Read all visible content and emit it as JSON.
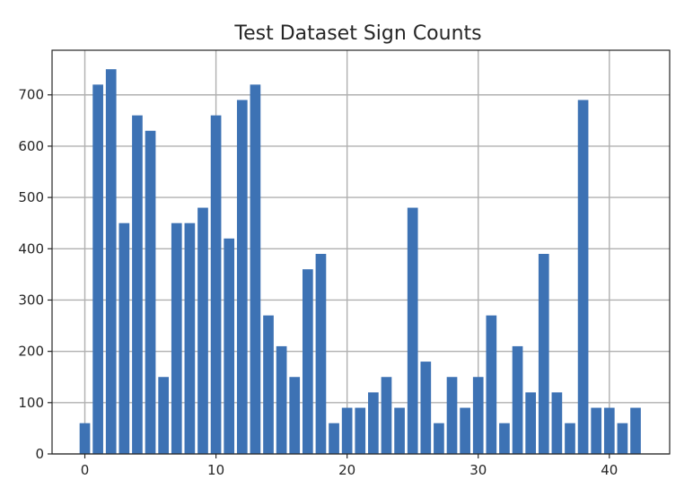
{
  "chart_data": {
    "type": "bar",
    "title": "Test Dataset Sign Counts",
    "xlabel": "",
    "ylabel": "",
    "x": [
      0,
      1,
      2,
      3,
      4,
      5,
      6,
      7,
      8,
      9,
      10,
      11,
      12,
      13,
      14,
      15,
      16,
      17,
      18,
      19,
      20,
      21,
      22,
      23,
      24,
      25,
      26,
      27,
      28,
      29,
      30,
      31,
      32,
      33,
      34,
      35,
      36,
      37,
      38,
      39,
      40,
      41,
      42
    ],
    "values": [
      60,
      720,
      750,
      450,
      660,
      630,
      150,
      450,
      450,
      480,
      660,
      420,
      690,
      720,
      270,
      210,
      150,
      360,
      390,
      60,
      90,
      90,
      120,
      150,
      90,
      480,
      180,
      60,
      150,
      90,
      150,
      270,
      60,
      210,
      120,
      390,
      120,
      60,
      690,
      90,
      90,
      60,
      90
    ],
    "xlim": [
      -2.5,
      44.6
    ],
    "ylim": [
      0,
      787
    ],
    "xticks": [
      0,
      10,
      20,
      30,
      40
    ],
    "xtick_labels": [
      "0",
      "10",
      "20",
      "30",
      "40"
    ],
    "yticks": [
      0,
      100,
      200,
      300,
      400,
      500,
      600,
      700
    ],
    "ytick_labels": [
      "0",
      "100",
      "200",
      "300",
      "400",
      "500",
      "600",
      "700"
    ],
    "grid": true,
    "bar_color": "#3d72b4"
  }
}
